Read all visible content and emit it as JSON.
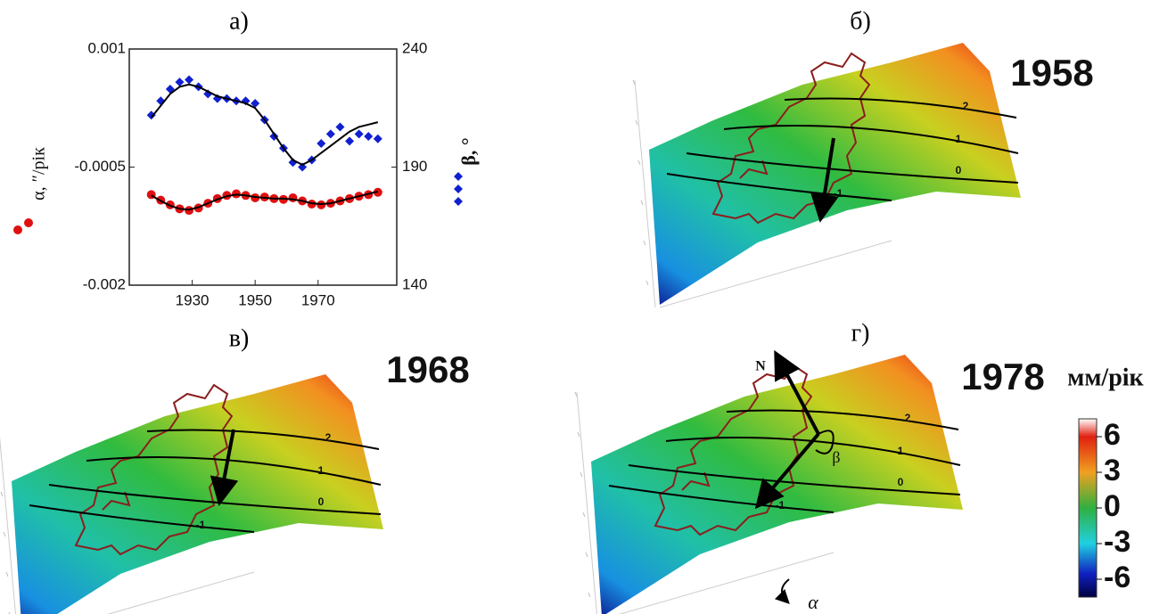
{
  "chart_data": {
    "type": "scatter",
    "title": "а)",
    "ylabel": "α, ″/рік",
    "y2label": "β, °",
    "x": [
      1917,
      1920,
      1923,
      1926,
      1929,
      1932,
      1935,
      1938,
      1941,
      1944,
      1947,
      1950,
      1953,
      1956,
      1959,
      1962,
      1965,
      1968,
      1971,
      1974,
      1977,
      1980,
      1983,
      1986,
      1989
    ],
    "xlim": [
      1910,
      1995
    ],
    "xticks": [
      1930,
      1950,
      1970
    ],
    "ylim": [
      -0.002,
      0.001
    ],
    "yticks": [
      0.001,
      -0.0005,
      -0.002
    ],
    "y2lim": [
      140,
      240
    ],
    "y2ticks": [
      240,
      190,
      140
    ],
    "series": [
      {
        "color": "#e01010",
        "mode": "markers",
        "marker": "circle",
        "values": [
          -0.00085,
          -0.00092,
          -0.00098,
          -0.00103,
          -0.00105,
          -0.00102,
          -0.00096,
          -0.0009,
          -0.00086,
          -0.00084,
          -0.00086,
          -0.00089,
          -0.00088,
          -0.0009,
          -0.00091,
          -0.00089,
          -0.00093,
          -0.00097,
          -0.00098,
          -0.00096,
          -0.00093,
          -0.0009,
          -0.00087,
          -0.00085,
          -0.00082
        ]
      },
      {
        "color": "#000000",
        "mode": "line",
        "values": [
          -0.00086,
          -0.00093,
          -0.00099,
          -0.00103,
          -0.00104,
          -0.00101,
          -0.00096,
          -0.00091,
          -0.00087,
          -0.00085,
          -0.00086,
          -0.00088,
          -0.00089,
          -0.0009,
          -0.0009,
          -0.00091,
          -0.00093,
          -0.00096,
          -0.00097,
          -0.00096,
          -0.00093,
          -0.0009,
          -0.00087,
          -0.00084,
          -0.00081
        ]
      },
      {
        "color": "#1020d0",
        "mode": "markers",
        "marker": "diamond",
        "axis": "y2",
        "values": [
          212,
          218,
          223,
          226,
          227,
          224,
          221,
          219,
          219,
          218,
          218,
          217,
          210,
          203,
          198,
          192,
          190,
          193,
          200,
          204,
          207,
          201,
          204,
          203,
          202
        ]
      },
      {
        "color": "#000000",
        "mode": "line",
        "axis": "y2",
        "values": [
          211,
          216,
          221,
          224,
          225,
          224,
          222,
          220,
          219,
          218,
          217,
          215,
          210,
          204,
          198,
          193,
          191,
          193,
          196,
          199,
          202,
          205,
          207,
          208,
          209
        ]
      }
    ]
  },
  "panels": [
    {
      "label": "б)",
      "year": "1958",
      "contours": [
        2,
        1,
        0,
        -1
      ]
    },
    {
      "label": "в)",
      "year": "1968",
      "contours": [
        2,
        1,
        0,
        -1
      ]
    },
    {
      "label": "г)",
      "year": "1978",
      "contours": [
        2,
        1,
        0,
        -1
      ],
      "north": "N",
      "angles": [
        "β",
        "α"
      ]
    }
  ],
  "colorbar": {
    "unit": "мм/рік",
    "lim": [
      -7.5,
      7.5
    ],
    "ticks": [
      6,
      3,
      0,
      -3,
      -6
    ]
  }
}
